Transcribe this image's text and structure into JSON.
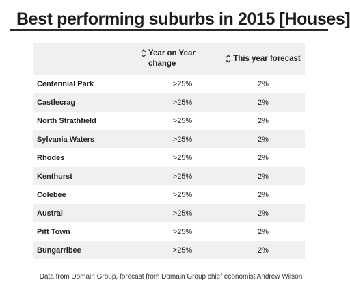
{
  "title": "Best performing suburbs in 2015 [Houses]",
  "table": {
    "headers": {
      "suburb": "",
      "change_line1": "Year on Year",
      "change_line2": "change",
      "forecast": "This year forecast"
    },
    "rows": [
      {
        "suburb": "Centennial Park",
        "change": ">25%",
        "forecast": "2%"
      },
      {
        "suburb": "Castlecrag",
        "change": ">25%",
        "forecast": "2%"
      },
      {
        "suburb": "North Strathfield",
        "change": ">25%",
        "forecast": "2%"
      },
      {
        "suburb": "Sylvania Waters",
        "change": ">25%",
        "forecast": "2%"
      },
      {
        "suburb": "Rhodes",
        "change": ">25%",
        "forecast": "2%"
      },
      {
        "suburb": "Kenthurst",
        "change": ">25%",
        "forecast": "2%"
      },
      {
        "suburb": "Colebee",
        "change": ">25%",
        "forecast": "2%"
      },
      {
        "suburb": "Austral",
        "change": ">25%",
        "forecast": "2%"
      },
      {
        "suburb": "Pitt Town",
        "change": ">25%",
        "forecast": "2%"
      },
      {
        "suburb": "Bungarribee",
        "change": ">25%",
        "forecast": "2%"
      }
    ]
  },
  "source": "Data from Domain Group, forecast from Domain Group chief economist Andrew Wilson",
  "colors": {
    "shaded_row": "#f0f0f0",
    "text": "#222222"
  }
}
